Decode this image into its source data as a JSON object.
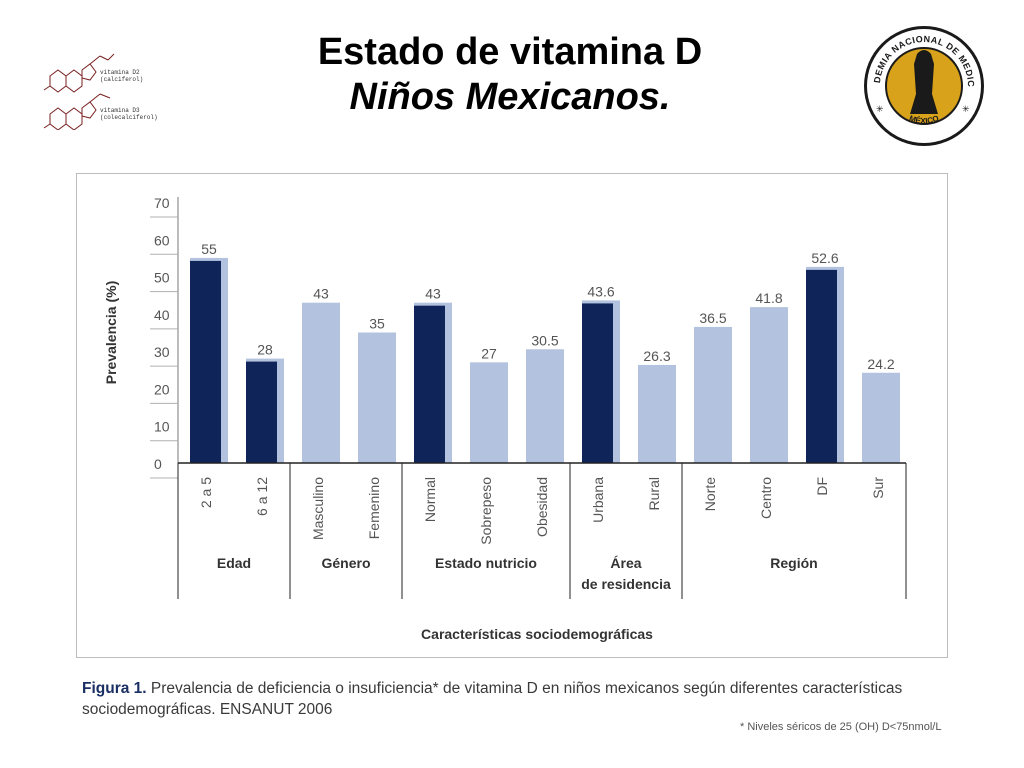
{
  "title": {
    "line1": "Estado de vitamina D",
    "line2": "Niños Mexicanos."
  },
  "molecule": {
    "label1": "vitamina D2",
    "label1b": "(calciferol)",
    "label2": "vitamina D3",
    "label2b": "(colecalciferol)"
  },
  "seal": {
    "top_text": "ACADEMIA NACIONAL DE MEDICINA",
    "bottom_text": "MÉXICO",
    "colors": {
      "ring": "#1a1a1a",
      "gold": "#d9a21b"
    }
  },
  "caption": {
    "label": "Figura 1.",
    "text": "Prevalencia de deficiencia o insuficiencia* de vitamina D en niños mexicanos según diferentes características sociodemográficas. ENSANUT 2006",
    "footnote": "* Niveles séricos de 25 (OH) D<75nmol/L"
  },
  "colors": {
    "dark": "#0f2559",
    "light": "#b3c2de"
  },
  "chart_data": {
    "type": "bar",
    "ylabel": "Prevalencia (%)",
    "xlabel": "Características sociodemográficas",
    "ylim": [
      0,
      70
    ],
    "yticks": [
      0,
      10,
      20,
      30,
      40,
      50,
      60,
      70
    ],
    "grid": false,
    "categories": [
      "2 a 5",
      "6 a 12",
      "Masculino",
      "Femenino",
      "Normal",
      "Sobrepeso",
      "Obesidad",
      "Urbana",
      "Rural",
      "Norte",
      "Centro",
      "DF",
      "Sur"
    ],
    "values": [
      55,
      28,
      43,
      35,
      43,
      27,
      30.5,
      43.6,
      26.3,
      36.5,
      41.8,
      52.6,
      24.2
    ],
    "value_labels": [
      "55",
      "28",
      "43",
      "35",
      "43",
      "27",
      "30.5",
      "43.6",
      "26.3",
      "36.5",
      "41.8",
      "52.6",
      "24.2"
    ],
    "highlight": [
      true,
      true,
      false,
      false,
      true,
      false,
      false,
      true,
      false,
      false,
      false,
      true,
      false
    ],
    "groups": [
      {
        "lines": [
          "Edad"
        ],
        "count": 2
      },
      {
        "lines": [
          "Género"
        ],
        "count": 2
      },
      {
        "lines": [
          "Estado nutricio"
        ],
        "count": 3
      },
      {
        "lines": [
          "Área",
          "de residencia"
        ],
        "count": 2
      },
      {
        "lines": [
          "Región"
        ],
        "count": 4
      }
    ]
  }
}
